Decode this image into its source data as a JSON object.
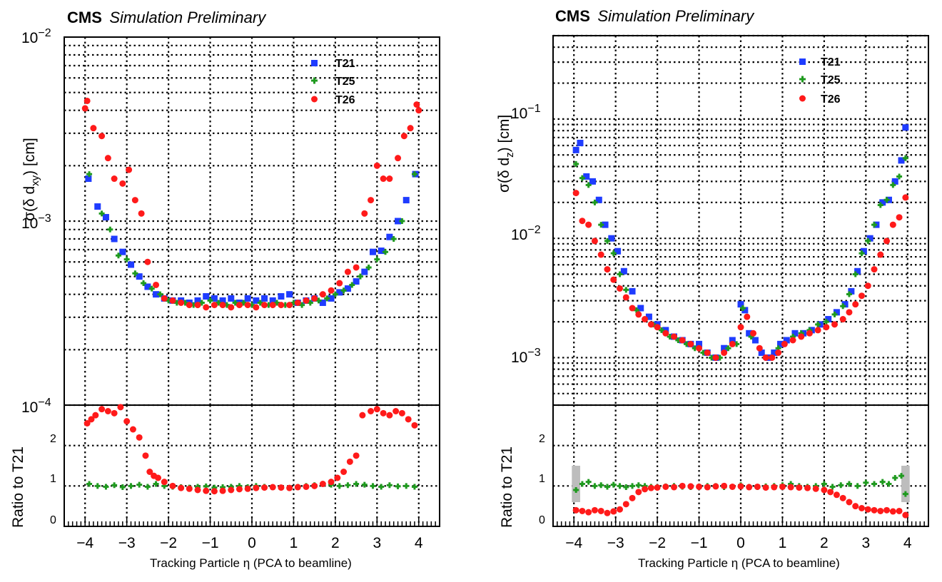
{
  "colors": {
    "T21": "#1f3cff",
    "T25": "#1f9a1f",
    "T26": "#ff1a1a",
    "band": "#bdbdbd"
  },
  "chart_data": [
    {
      "type": "scatter",
      "header_bold": "CMS",
      "header_italic": "Simulation Preliminary",
      "ylabel_main": "σ(δ d_xy) [cm]",
      "ylabel_main_text": "σ(δ d",
      "ylabel_main_sub": "xy",
      "ylabel_main_tail": ") [cm]",
      "ylabel_ratio": "Ratio to T21",
      "xlabel": "Tracking Particle η (PCA to beamline)",
      "x_ticks": [
        "−4",
        "−3",
        "−2",
        "−1",
        "0",
        "1",
        "2",
        "3",
        "4"
      ],
      "y_main_ticks": [
        "10",
        "10",
        "10"
      ],
      "y_main_tick_exps": [
        "−2",
        "−3",
        "−4"
      ],
      "y_ratio_ticks": [
        "2",
        "1",
        "0"
      ],
      "xlim": [
        -4.5,
        4.5
      ],
      "ylim_main": [
        0.0001,
        0.01
      ],
      "ylim_ratio": [
        0,
        3
      ],
      "yscale_main": "log",
      "legend_position": "top-right",
      "series": [
        {
          "name": "T21",
          "marker": "square",
          "x": [
            -3.92,
            -3.7,
            -3.5,
            -3.3,
            -3.1,
            -2.9,
            -2.7,
            -2.5,
            -2.3,
            -2.1,
            -1.9,
            -1.7,
            -1.5,
            -1.3,
            -1.1,
            -0.9,
            -0.7,
            -0.5,
            -0.3,
            -0.1,
            0.1,
            0.3,
            0.5,
            0.7,
            0.9,
            1.1,
            1.3,
            1.5,
            1.7,
            1.9,
            2.1,
            2.3,
            2.5,
            2.7,
            2.9,
            3.1,
            3.3,
            3.5,
            3.7,
            3.92
          ],
          "y": [
            0.0017,
            0.0012,
            0.00105,
            0.0008,
            0.00068,
            0.00058,
            0.0005,
            0.00044,
            0.0004,
            0.00038,
            0.00037,
            0.00037,
            0.00036,
            0.00037,
            0.00039,
            0.00038,
            0.00037,
            0.00038,
            0.00036,
            0.00038,
            0.00037,
            0.00038,
            0.00037,
            0.00039,
            0.0004,
            0.00036,
            0.00037,
            0.00038,
            0.00036,
            0.00038,
            0.00041,
            0.00043,
            0.00047,
            0.00053,
            0.00068,
            0.00069,
            0.00082,
            0.001,
            0.0013,
            0.0018
          ]
        },
        {
          "name": "T25",
          "marker": "cross",
          "x": [
            -3.9,
            -3.6,
            -3.4,
            -3.2,
            -3.0,
            -2.8,
            -2.6,
            -2.4,
            -2.2,
            -2.0,
            -1.8,
            -1.6,
            -1.4,
            -1.2,
            -1.0,
            -0.8,
            -0.6,
            -0.4,
            -0.2,
            0.0,
            0.2,
            0.4,
            0.6,
            0.8,
            1.0,
            1.2,
            1.4,
            1.6,
            1.8,
            2.0,
            2.2,
            2.4,
            2.6,
            2.8,
            3.0,
            3.2,
            3.4,
            3.6,
            3.9
          ],
          "y": [
            0.0018,
            0.0011,
            0.0009,
            0.00065,
            0.00062,
            0.00052,
            0.00046,
            0.00043,
            0.0004,
            0.00037,
            0.00036,
            0.00036,
            0.00035,
            0.00036,
            0.00037,
            0.00036,
            0.00035,
            0.00036,
            0.00036,
            0.00035,
            0.00036,
            0.00035,
            0.00036,
            0.00035,
            0.00036,
            0.00035,
            0.00036,
            0.00037,
            0.00038,
            0.0004,
            0.00042,
            0.00045,
            0.0005,
            0.00056,
            0.00062,
            0.00068,
            0.0008,
            0.001,
            0.0018
          ]
        },
        {
          "name": "T26",
          "marker": "circle",
          "x": [
            -4.0,
            -3.95,
            -3.8,
            -3.6,
            -3.45,
            -3.3,
            -3.1,
            -2.95,
            -2.8,
            -2.65,
            -2.5,
            -2.3,
            -2.1,
            -1.9,
            -1.7,
            -1.5,
            -1.3,
            -1.1,
            -0.9,
            -0.7,
            -0.5,
            -0.3,
            -0.1,
            0.1,
            0.3,
            0.5,
            0.7,
            0.9,
            1.1,
            1.3,
            1.5,
            1.7,
            1.9,
            2.1,
            2.3,
            2.5,
            2.7,
            2.85,
            3.0,
            3.15,
            3.3,
            3.5,
            3.65,
            3.8,
            3.95,
            4.0
          ],
          "y": [
            0.0041,
            0.0045,
            0.0032,
            0.0029,
            0.0022,
            0.0017,
            0.0016,
            0.0019,
            0.0013,
            0.0011,
            0.0006,
            0.00045,
            0.00038,
            0.00037,
            0.00036,
            0.00035,
            0.00035,
            0.00034,
            0.00035,
            0.00035,
            0.00034,
            0.00035,
            0.00035,
            0.00034,
            0.00035,
            0.00035,
            0.00035,
            0.00035,
            0.00036,
            0.00037,
            0.00038,
            0.0004,
            0.00042,
            0.00046,
            0.00053,
            0.00056,
            0.0011,
            0.0013,
            0.002,
            0.0017,
            0.0017,
            0.0022,
            0.0029,
            0.0032,
            0.0043,
            0.004
          ]
        }
      ],
      "ratio_series": [
        {
          "name": "T25",
          "marker": "cross",
          "x": [
            -3.9,
            -3.7,
            -3.5,
            -3.3,
            -3.1,
            -2.9,
            -2.7,
            -2.5,
            -2.3,
            -2.1,
            -1.9,
            -1.7,
            -1.5,
            -1.3,
            -1.1,
            -0.9,
            -0.7,
            -0.5,
            -0.3,
            -0.1,
            0.1,
            0.3,
            0.5,
            0.7,
            0.9,
            1.1,
            1.3,
            1.5,
            1.7,
            1.9,
            2.1,
            2.3,
            2.5,
            2.7,
            2.9,
            3.1,
            3.3,
            3.5,
            3.7,
            3.9
          ],
          "y": [
            1.05,
            1.0,
            0.98,
            1.02,
            0.97,
            1.0,
            1.03,
            0.98,
            1.05,
            1.0,
            0.98,
            0.97,
            0.96,
            0.98,
            0.99,
            0.96,
            0.97,
            0.98,
            1.0,
            0.97,
            1.0,
            0.98,
            0.97,
            0.96,
            0.95,
            0.98,
            1.0,
            1.02,
            1.05,
            1.03,
            1.0,
            1.02,
            1.05,
            1.03,
            1.0,
            0.98,
            1.02,
            0.99,
            1.0,
            0.98
          ]
        },
        {
          "name": "T26",
          "marker": "circle",
          "x": [
            -3.95,
            -3.85,
            -3.75,
            -3.6,
            -3.45,
            -3.3,
            -3.15,
            -3.0,
            -2.85,
            -2.7,
            -2.55,
            -2.45,
            -2.35,
            -2.25,
            -2.1,
            -1.9,
            -1.7,
            -1.5,
            -1.3,
            -1.1,
            -0.9,
            -0.7,
            -0.5,
            -0.3,
            -0.1,
            0.1,
            0.3,
            0.5,
            0.7,
            0.9,
            1.1,
            1.3,
            1.5,
            1.7,
            1.9,
            2.05,
            2.2,
            2.35,
            2.5,
            2.65,
            2.85,
            3.0,
            3.15,
            3.3,
            3.45,
            3.6,
            3.75,
            3.9
          ],
          "y": [
            2.55,
            2.65,
            2.75,
            2.9,
            2.85,
            2.8,
            2.95,
            2.6,
            2.4,
            2.2,
            1.75,
            1.35,
            1.25,
            1.2,
            1.1,
            1.0,
            0.95,
            0.93,
            0.9,
            0.88,
            0.87,
            0.88,
            0.9,
            0.92,
            0.93,
            0.95,
            0.96,
            0.97,
            0.96,
            0.95,
            0.97,
            0.98,
            1.0,
            1.05,
            1.1,
            1.2,
            1.35,
            1.6,
            1.75,
            2.75,
            2.85,
            2.9,
            2.8,
            2.75,
            2.85,
            2.8,
            2.65,
            2.5
          ]
        }
      ]
    },
    {
      "type": "scatter",
      "header_bold": "CMS",
      "header_italic": "Simulation Preliminary",
      "ylabel_main": "σ(δ d_z) [cm]",
      "ylabel_main_text": "σ(δ d",
      "ylabel_main_sub": "z",
      "ylabel_main_tail": ") [cm]",
      "ylabel_ratio": "Ratio to T21",
      "xlabel": "Tracking Particle η (PCA to beamline)",
      "x_ticks": [
        "−4",
        "−3",
        "−2",
        "−1",
        "0",
        "1",
        "2",
        "3",
        "4"
      ],
      "y_main_ticks": [
        "10",
        "10",
        "10"
      ],
      "y_main_tick_exps": [
        "−1",
        "−2",
        "−3"
      ],
      "y_ratio_ticks": [
        "2",
        "1",
        "0"
      ],
      "xlim": [
        -4.5,
        4.5
      ],
      "ylim_main": [
        0.0004,
        0.5
      ],
      "ylim_ratio": [
        0,
        3
      ],
      "yscale_main": "log",
      "legend_position": "top-right",
      "series": [
        {
          "name": "T21",
          "marker": "square",
          "x": [
            -3.95,
            -3.85,
            -3.7,
            -3.55,
            -3.4,
            -3.25,
            -3.1,
            -2.95,
            -2.8,
            -2.6,
            -2.4,
            -2.2,
            -2.0,
            -1.8,
            -1.6,
            -1.4,
            -1.2,
            -1.0,
            -0.8,
            -0.6,
            -0.4,
            -0.2,
            0.0,
            0.1,
            0.2,
            0.35,
            0.5,
            0.65,
            0.8,
            0.95,
            1.1,
            1.3,
            1.5,
            1.7,
            1.9,
            2.1,
            2.3,
            2.5,
            2.65,
            2.8,
            2.95,
            3.1,
            3.25,
            3.4,
            3.55,
            3.7,
            3.85,
            3.95
          ],
          "y": [
            0.055,
            0.063,
            0.033,
            0.03,
            0.021,
            0.013,
            0.01,
            0.0078,
            0.0053,
            0.0036,
            0.0026,
            0.0022,
            0.0019,
            0.0017,
            0.0015,
            0.0014,
            0.0013,
            0.0013,
            0.0011,
            0.001,
            0.0012,
            0.0014,
            0.0028,
            0.0025,
            0.0016,
            0.0014,
            0.0011,
            0.001,
            0.0011,
            0.0013,
            0.0014,
            0.0016,
            0.0016,
            0.0017,
            0.0019,
            0.0021,
            0.0024,
            0.0028,
            0.0036,
            0.0053,
            0.0078,
            0.01,
            0.013,
            0.02,
            0.021,
            0.03,
            0.045,
            0.085
          ]
        },
        {
          "name": "T25",
          "marker": "cross",
          "x": [
            -3.95,
            -3.8,
            -3.65,
            -3.5,
            -3.35,
            -3.2,
            -3.05,
            -2.9,
            -2.75,
            -2.5,
            -2.3,
            -2.1,
            -1.9,
            -1.7,
            -1.5,
            -1.3,
            -1.1,
            -0.9,
            -0.7,
            -0.5,
            -0.3,
            -0.1,
            0.05,
            0.25,
            0.45,
            0.6,
            0.75,
            0.9,
            1.05,
            1.25,
            1.45,
            1.65,
            1.85,
            2.05,
            2.25,
            2.45,
            2.6,
            2.75,
            2.9,
            3.05,
            3.2,
            3.35,
            3.5,
            3.65,
            3.8,
            3.95
          ],
          "y": [
            0.042,
            0.032,
            0.028,
            0.02,
            0.013,
            0.0095,
            0.0075,
            0.005,
            0.0037,
            0.0025,
            0.0021,
            0.0019,
            0.0017,
            0.0015,
            0.0014,
            0.0013,
            0.0012,
            0.0011,
            0.001,
            0.001,
            0.0012,
            0.0013,
            0.0026,
            0.0015,
            0.0012,
            0.001,
            0.001,
            0.0012,
            0.0013,
            0.0015,
            0.0016,
            0.0017,
            0.0019,
            0.002,
            0.0023,
            0.0027,
            0.0034,
            0.005,
            0.0075,
            0.0095,
            0.013,
            0.019,
            0.021,
            0.028,
            0.033,
            0.047
          ]
        },
        {
          "name": "T26",
          "marker": "circle",
          "x": [
            -3.95,
            -3.8,
            -3.65,
            -3.5,
            -3.35,
            -3.2,
            -3.05,
            -2.9,
            -2.75,
            -2.6,
            -2.45,
            -2.3,
            -2.15,
            -2.0,
            -1.8,
            -1.6,
            -1.4,
            -1.2,
            -1.0,
            -0.8,
            -0.6,
            -0.4,
            -0.2,
            0.0,
            0.15,
            0.3,
            0.45,
            0.6,
            0.75,
            0.9,
            1.05,
            1.25,
            1.45,
            1.65,
            1.85,
            2.05,
            2.25,
            2.45,
            2.6,
            2.75,
            2.9,
            3.05,
            3.2,
            3.35,
            3.5,
            3.65,
            3.8,
            3.95
          ],
          "y": [
            0.024,
            0.014,
            0.013,
            0.0095,
            0.0073,
            0.0055,
            0.0045,
            0.0038,
            0.0032,
            0.0026,
            0.0023,
            0.0021,
            0.0019,
            0.0018,
            0.0016,
            0.0015,
            0.0014,
            0.0013,
            0.0012,
            0.0011,
            0.001,
            0.0011,
            0.0013,
            0.0018,
            0.0022,
            0.0016,
            0.0012,
            0.001,
            0.001,
            0.0011,
            0.0013,
            0.0014,
            0.0015,
            0.0016,
            0.0017,
            0.0018,
            0.0019,
            0.0021,
            0.0024,
            0.0028,
            0.0033,
            0.004,
            0.0055,
            0.0073,
            0.0095,
            0.013,
            0.015,
            0.022
          ]
        }
      ],
      "ratio_series": [
        {
          "name": "T25",
          "marker": "cross",
          "x": [
            -3.95,
            -3.8,
            -3.65,
            -3.5,
            -3.35,
            -3.2,
            -3.05,
            -2.9,
            -2.75,
            -2.6,
            -2.45,
            -2.3,
            -2.15,
            -2.0,
            -1.8,
            -1.6,
            -1.4,
            -1.2,
            -1.0,
            -0.8,
            -0.6,
            -0.4,
            -0.2,
            0.0,
            0.2,
            0.4,
            0.6,
            0.8,
            1.0,
            1.2,
            1.4,
            1.6,
            1.8,
            2.0,
            2.2,
            2.4,
            2.6,
            2.8,
            3.0,
            3.2,
            3.4,
            3.55,
            3.7,
            3.85,
            3.95
          ],
          "y": [
            0.9,
            1.05,
            1.1,
            1.0,
            1.02,
            0.98,
            1.03,
            1.0,
            0.97,
            1.0,
            1.02,
            1.0,
            0.98,
            0.97,
            0.99,
            1.0,
            0.98,
            0.97,
            0.99,
            1.0,
            1.0,
            0.97,
            0.98,
            1.02,
            0.98,
            0.97,
            0.99,
            1.0,
            1.02,
            1.05,
            1.0,
            0.98,
            1.0,
            1.05,
            0.98,
            1.02,
            1.05,
            1.0,
            1.08,
            1.05,
            1.1,
            1.05,
            1.2,
            1.25,
            0.8
          ]
        },
        {
          "name": "T26",
          "marker": "circle",
          "x": [
            -3.95,
            -3.8,
            -3.65,
            -3.5,
            -3.35,
            -3.2,
            -3.05,
            -2.9,
            -2.75,
            -2.6,
            -2.45,
            -2.3,
            -2.15,
            -2.0,
            -1.8,
            -1.6,
            -1.4,
            -1.2,
            -1.0,
            -0.8,
            -0.6,
            -0.4,
            -0.2,
            0.0,
            0.2,
            0.4,
            0.6,
            0.8,
            1.0,
            1.2,
            1.4,
            1.6,
            1.8,
            2.0,
            2.15,
            2.3,
            2.45,
            2.6,
            2.75,
            2.9,
            3.05,
            3.2,
            3.35,
            3.5,
            3.65,
            3.8,
            3.95
          ],
          "y": [
            0.4,
            0.38,
            0.35,
            0.4,
            0.38,
            0.33,
            0.37,
            0.42,
            0.55,
            0.7,
            0.85,
            0.92,
            0.95,
            0.96,
            0.98,
            0.97,
            1.0,
            0.99,
            0.98,
            0.97,
            0.99,
            1.0,
            0.98,
            0.99,
            0.97,
            0.98,
            0.96,
            0.97,
            0.98,
            0.97,
            0.96,
            0.95,
            0.93,
            0.9,
            0.85,
            0.78,
            0.7,
            0.6,
            0.5,
            0.45,
            0.42,
            0.4,
            0.38,
            0.4,
            0.37,
            0.38,
            0.28
          ]
        }
      ]
    }
  ]
}
